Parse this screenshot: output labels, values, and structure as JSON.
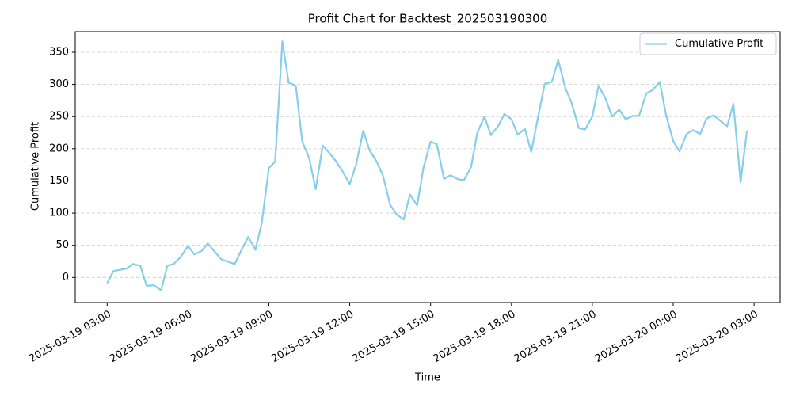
{
  "chart_data": {
    "type": "line",
    "title": "Profit Chart for Backtest_202503190300",
    "x_label": "Time",
    "y_label": "Cumulative Profit",
    "x": [
      "2025-03-19 03:00",
      "2025-03-19 03:14",
      "2025-03-19 03:30",
      "2025-03-19 03:44",
      "2025-03-19 03:58",
      "2025-03-19 04:14",
      "2025-03-19 04:28",
      "2025-03-19 04:44",
      "2025-03-19 05:00",
      "2025-03-19 05:14",
      "2025-03-19 05:28",
      "2025-03-19 05:44",
      "2025-03-19 06:00",
      "2025-03-19 06:14",
      "2025-03-19 06:30",
      "2025-03-19 06:44",
      "2025-03-19 07:14",
      "2025-03-19 07:44",
      "2025-03-19 08:00",
      "2025-03-19 08:14",
      "2025-03-19 08:30",
      "2025-03-19 08:44",
      "2025-03-19 09:00",
      "2025-03-19 09:14",
      "2025-03-19 09:30",
      "2025-03-19 09:44",
      "2025-03-19 10:00",
      "2025-03-19 10:14",
      "2025-03-19 10:30",
      "2025-03-19 10:44",
      "2025-03-19 11:00",
      "2025-03-19 11:14",
      "2025-03-19 11:30",
      "2025-03-19 11:44",
      "2025-03-19 12:00",
      "2025-03-19 12:14",
      "2025-03-19 12:30",
      "2025-03-19 12:44",
      "2025-03-19 13:00",
      "2025-03-19 13:14",
      "2025-03-19 13:30",
      "2025-03-19 13:44",
      "2025-03-19 14:00",
      "2025-03-19 14:14",
      "2025-03-19 14:30",
      "2025-03-19 14:44",
      "2025-03-19 15:00",
      "2025-03-19 15:14",
      "2025-03-19 15:30",
      "2025-03-19 15:44",
      "2025-03-19 16:00",
      "2025-03-19 16:14",
      "2025-03-19 16:30",
      "2025-03-19 16:44",
      "2025-03-19 17:00",
      "2025-03-19 17:14",
      "2025-03-19 17:30",
      "2025-03-19 17:44",
      "2025-03-19 18:00",
      "2025-03-19 18:14",
      "2025-03-19 18:30",
      "2025-03-19 18:44",
      "2025-03-19 19:00",
      "2025-03-19 19:14",
      "2025-03-19 19:30",
      "2025-03-19 19:44",
      "2025-03-19 20:00",
      "2025-03-19 20:14",
      "2025-03-19 20:30",
      "2025-03-19 20:44",
      "2025-03-19 21:00",
      "2025-03-19 21:14",
      "2025-03-19 21:30",
      "2025-03-19 21:44",
      "2025-03-19 22:00",
      "2025-03-19 22:14",
      "2025-03-19 22:30",
      "2025-03-19 22:44",
      "2025-03-19 23:00",
      "2025-03-19 23:14",
      "2025-03-19 23:30",
      "2025-03-19 23:44",
      "2025-03-20 00:00",
      "2025-03-20 00:14",
      "2025-03-20 00:30",
      "2025-03-20 00:44",
      "2025-03-20 01:00",
      "2025-03-20 01:14",
      "2025-03-20 01:30",
      "2025-03-20 02:00",
      "2025-03-20 02:14",
      "2025-03-20 02:30",
      "2025-03-20 02:44"
    ],
    "series": [
      {
        "name": "Cumulative Profit",
        "color": "#87ceeb",
        "values": [
          -9,
          10,
          12,
          14,
          21,
          18,
          -13,
          -12,
          -20,
          18,
          21,
          32,
          49,
          36,
          41,
          53,
          28,
          21,
          44,
          63,
          43,
          84,
          170,
          180,
          367,
          303,
          298,
          212,
          185,
          137,
          205,
          194,
          180,
          165,
          145,
          175,
          228,
          198,
          180,
          158,
          113,
          98,
          90,
          129,
          112,
          170,
          211,
          207,
          153,
          159,
          153,
          151,
          171,
          225,
          250,
          221,
          235,
          254,
          246,
          222,
          231,
          195,
          252,
          301,
          304,
          338,
          294,
          271,
          232,
          230,
          250,
          298,
          277,
          250,
          261,
          246,
          251,
          251,
          286,
          291,
          304,
          253,
          212,
          196,
          223,
          229,
          223,
          247,
          252,
          235,
          270,
          148,
          227
        ]
      }
    ],
    "xlim": [
      "2025-03-19 01:49",
      "2025-03-20 03:58"
    ],
    "xticks": [
      "2025-03-19 03:00",
      "2025-03-19 06:00",
      "2025-03-19 09:00",
      "2025-03-19 12:00",
      "2025-03-19 15:00",
      "2025-03-19 18:00",
      "2025-03-19 21:00",
      "2025-03-20 00:00",
      "2025-03-20 03:00"
    ],
    "ylim": [
      -39,
      382
    ],
    "yticks": [
      0,
      50,
      100,
      150,
      200,
      250,
      300,
      350
    ],
    "grid": true,
    "legend": "upper right"
  }
}
